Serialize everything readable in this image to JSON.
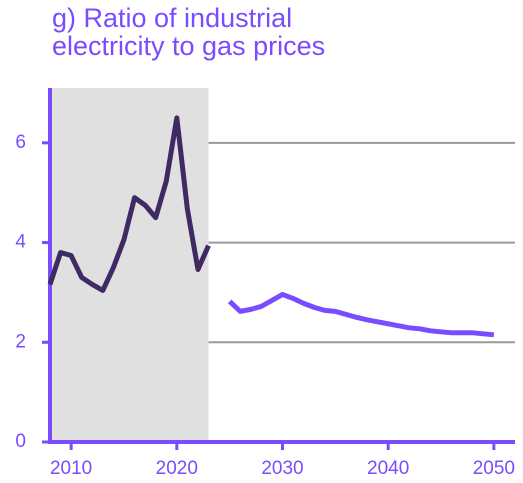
{
  "chart_data": {
    "type": "line",
    "title": [
      "g) Ratio of industrial",
      "electricity to gas prices"
    ],
    "x": [
      2008,
      2009,
      2010,
      2011,
      2012,
      2013,
      2014,
      2015,
      2016,
      2017,
      2018,
      2019,
      2020,
      2021,
      2022,
      2023,
      2024,
      2025,
      2026,
      2027,
      2028,
      2029,
      2030,
      2031,
      2032,
      2033,
      2034,
      2035,
      2036,
      2037,
      2038,
      2039,
      2040,
      2041,
      2042,
      2043,
      2044,
      2045,
      2046,
      2047,
      2048,
      2049,
      2050
    ],
    "series": [
      {
        "color": "#3f2a63",
        "values": [
          3.16,
          3.8,
          3.74,
          3.3,
          3.16,
          3.04,
          3.5,
          4.06,
          4.9,
          4.75,
          4.5,
          5.23,
          6.5,
          4.67,
          3.46,
          3.94,
          null,
          null,
          null,
          null,
          null,
          null,
          null,
          null,
          null,
          null,
          null,
          null,
          null,
          null,
          null,
          null,
          null,
          null,
          null,
          null,
          null,
          null,
          null,
          null,
          null,
          null,
          null
        ]
      },
      {
        "color": "#7a4cff",
        "values": [
          null,
          null,
          null,
          null,
          null,
          null,
          null,
          null,
          null,
          null,
          null,
          null,
          null,
          null,
          null,
          null,
          null,
          2.82,
          2.62,
          2.66,
          2.72,
          2.84,
          2.96,
          2.88,
          2.78,
          2.7,
          2.64,
          2.62,
          2.56,
          2.5,
          2.45,
          2.41,
          2.37,
          2.33,
          2.29,
          2.27,
          2.23,
          2.21,
          2.19,
          2.19,
          2.19,
          2.17,
          2.15
        ]
      }
    ],
    "shaded_range": [
      2008,
      2023
    ],
    "xlim": [
      2008,
      2052
    ],
    "xticks": [
      2010,
      2020,
      2030,
      2040,
      2050
    ],
    "ylim": [
      0,
      7.1
    ],
    "yticks": [
      0,
      2,
      4,
      6
    ],
    "grid": true
  }
}
